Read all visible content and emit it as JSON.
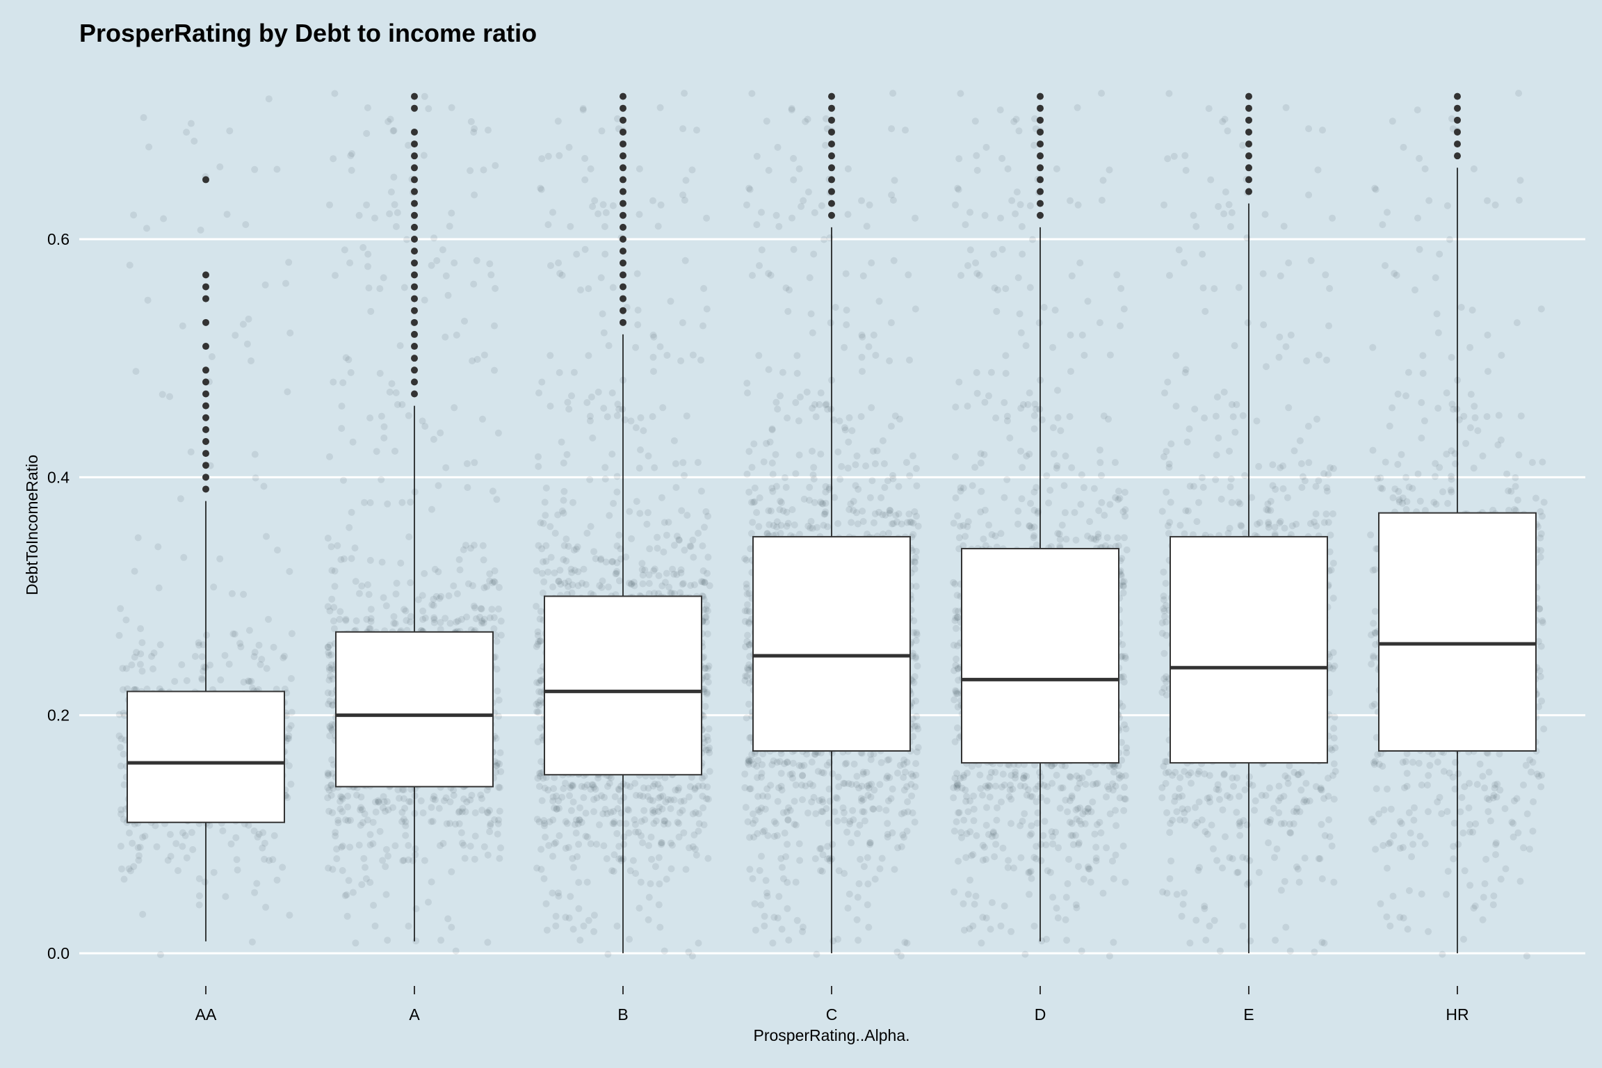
{
  "chart_data": {
    "type": "box",
    "title": "ProsperRating by Debt to income ratio",
    "xlabel": "ProsperRating..Alpha.",
    "ylabel": "DebtToIncomeRatio",
    "ylim": [
      -0.02,
      0.72
    ],
    "yticks": [
      "0.0",
      "0.2",
      "0.4",
      "0.6"
    ],
    "grid": "horizontal",
    "background": "#d5e4eb",
    "categories": [
      "AA",
      "A",
      "B",
      "C",
      "D",
      "E",
      "HR"
    ],
    "boxes": [
      {
        "category": "AA",
        "whisker_low": 0.01,
        "q1": 0.11,
        "median": 0.16,
        "q3": 0.22,
        "whisker_high": 0.38,
        "outliers": [
          0.39,
          0.4,
          0.41,
          0.42,
          0.43,
          0.44,
          0.45,
          0.46,
          0.47,
          0.48,
          0.49,
          0.51,
          0.53,
          0.55,
          0.56,
          0.57,
          0.65
        ]
      },
      {
        "category": "A",
        "whisker_low": 0.01,
        "q1": 0.14,
        "median": 0.2,
        "q3": 0.27,
        "whisker_high": 0.46,
        "outliers": [
          0.47,
          0.48,
          0.49,
          0.5,
          0.51,
          0.52,
          0.53,
          0.54,
          0.55,
          0.56,
          0.57,
          0.58,
          0.59,
          0.6,
          0.61,
          0.62,
          0.63,
          0.64,
          0.65,
          0.66,
          0.67,
          0.68,
          0.69,
          0.71,
          0.72
        ]
      },
      {
        "category": "B",
        "whisker_low": 0.0,
        "q1": 0.15,
        "median": 0.22,
        "q3": 0.3,
        "whisker_high": 0.52,
        "outliers": [
          0.53,
          0.54,
          0.55,
          0.56,
          0.57,
          0.58,
          0.59,
          0.6,
          0.61,
          0.62,
          0.63,
          0.64,
          0.65,
          0.66,
          0.67,
          0.68,
          0.69,
          0.7,
          0.71,
          0.72
        ]
      },
      {
        "category": "C",
        "whisker_low": 0.0,
        "q1": 0.17,
        "median": 0.25,
        "q3": 0.35,
        "whisker_high": 0.61,
        "outliers": [
          0.62,
          0.63,
          0.64,
          0.65,
          0.66,
          0.67,
          0.68,
          0.69,
          0.7,
          0.71,
          0.72
        ]
      },
      {
        "category": "D",
        "whisker_low": 0.01,
        "q1": 0.16,
        "median": 0.23,
        "q3": 0.34,
        "whisker_high": 0.61,
        "outliers": [
          0.62,
          0.63,
          0.64,
          0.65,
          0.66,
          0.67,
          0.68,
          0.69,
          0.7,
          0.71,
          0.72
        ]
      },
      {
        "category": "E",
        "whisker_low": 0.0,
        "q1": 0.16,
        "median": 0.24,
        "q3": 0.35,
        "whisker_high": 0.63,
        "outliers": [
          0.64,
          0.65,
          0.66,
          0.67,
          0.68,
          0.69,
          0.7,
          0.71,
          0.72
        ]
      },
      {
        "category": "HR",
        "whisker_low": 0.0,
        "q1": 0.17,
        "median": 0.26,
        "q3": 0.37,
        "whisker_high": 0.66,
        "outliers": [
          0.67,
          0.68,
          0.69,
          0.7,
          0.71,
          0.72
        ]
      }
    ],
    "jitter_points": {
      "color": "#2a3a40",
      "opacity": 0.1,
      "ymax": 0.72,
      "relative_density": [
        0.35,
        0.75,
        1.0,
        1.0,
        0.85,
        0.65,
        0.5
      ]
    }
  }
}
